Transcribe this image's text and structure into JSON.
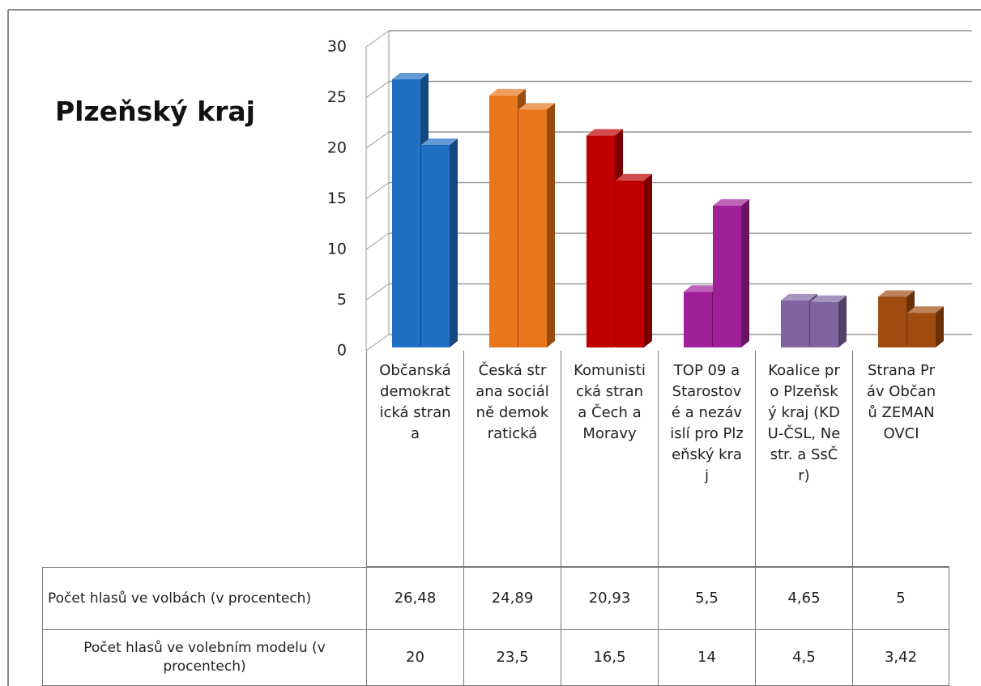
{
  "chart_data": {
    "type": "bar3d",
    "title": "Plzeňský kraj",
    "categories": [
      "Občanská demokratická strana",
      "Česká strana sociálně demokratická",
      "Komunistická strana Čech a Moravy",
      "TOP 09 a Starostové a nezávislí pro Plzeňský kraj",
      "Koalice pro Plzeňský kraj (KDU-ČSL, Nestr. a SsČr)",
      "Strana Práv Občanů ZEMANOVCI"
    ],
    "colors": [
      "#1f6fc5",
      "#e8761a",
      "#c00000",
      "#a0209a",
      "#8064a2",
      "#a04c10"
    ],
    "series": [
      {
        "name": "Počet hlasů ve volbách (v procentech)",
        "values": [
          26.48,
          24.89,
          20.93,
          5.5,
          4.65,
          5
        ],
        "value_labels": [
          "26,48",
          "24,89",
          "20,93",
          "5,5",
          "4,65",
          "5"
        ]
      },
      {
        "name": "Počet hlasů ve volebním modelu (v procentech)",
        "values": [
          20,
          23.5,
          16.5,
          14,
          4.5,
          3.42
        ],
        "value_labels": [
          "20",
          "23,5",
          "16,5",
          "14",
          "4,5",
          "3,42"
        ]
      }
    ],
    "ylim": [
      0,
      30
    ],
    "yticks": [
      0,
      5,
      10,
      15,
      20,
      25,
      30
    ],
    "grid": true
  }
}
